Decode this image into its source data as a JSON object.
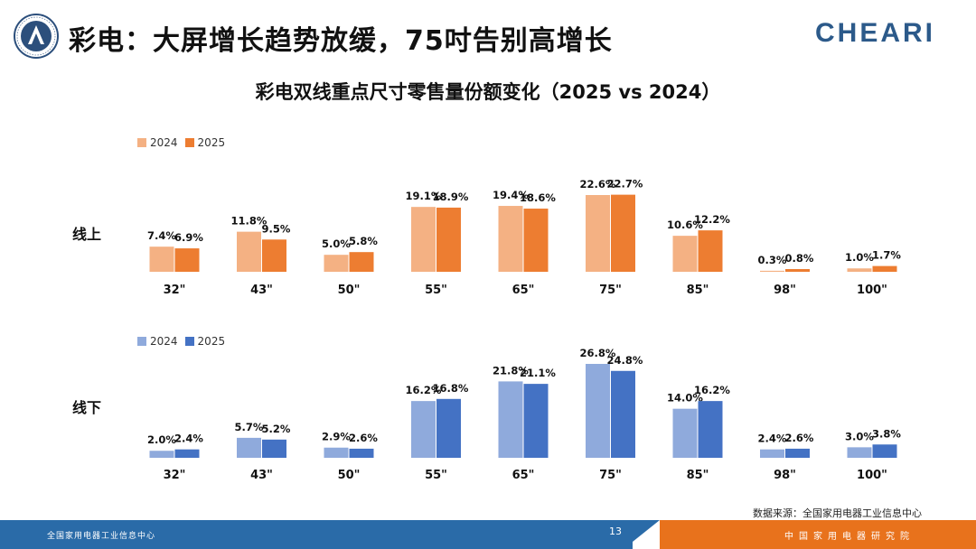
{
  "header": {
    "title": "彩电：大屏增长趋势放缓，75吋告别高增长",
    "brand": "CHEARI"
  },
  "chart_title": "彩电双线重点尺寸零售量份额变化（2025 vs 2024）",
  "colors": {
    "online_2024": "#f4b183",
    "online_2025": "#ed7d31",
    "offline_2024": "#8faadc",
    "offline_2025": "#4472c4",
    "footer_blue": "#2a6ba8",
    "footer_orange": "#e8721c"
  },
  "chart_data": [
    {
      "type": "bar",
      "row_label": "线上",
      "legend": [
        "2024",
        "2025"
      ],
      "categories": [
        "32\"",
        "43\"",
        "50\"",
        "55\"",
        "65\"",
        "75\"",
        "85\"",
        "98\"",
        "100\""
      ],
      "series": [
        {
          "name": "2024",
          "values": [
            7.4,
            11.8,
            5.0,
            19.1,
            19.4,
            22.6,
            10.6,
            0.3,
            1.0
          ],
          "labels": [
            "7.4%",
            "11.8%",
            "5.0%",
            "19.1%",
            "19.4%",
            "22.6%",
            "10.6%",
            "0.3%",
            "1.0%"
          ]
        },
        {
          "name": "2025",
          "values": [
            6.9,
            9.5,
            5.8,
            18.9,
            18.6,
            22.7,
            12.2,
            0.8,
            1.7
          ],
          "labels": [
            "6.9%",
            "9.5%",
            "5.8%",
            "18.9%",
            "18.6%",
            "22.7%",
            "12.2%",
            "0.8%",
            "1.7%"
          ]
        }
      ],
      "unit": "%"
    },
    {
      "type": "bar",
      "row_label": "线下",
      "legend": [
        "2024",
        "2025"
      ],
      "categories": [
        "32\"",
        "43\"",
        "50\"",
        "55\"",
        "65\"",
        "75\"",
        "85\"",
        "98\"",
        "100\""
      ],
      "series": [
        {
          "name": "2024",
          "values": [
            2.0,
            5.7,
            2.9,
            16.2,
            21.8,
            26.8,
            14.0,
            2.4,
            3.0
          ],
          "labels": [
            "2.0%",
            "5.7%",
            "2.9%",
            "16.2%",
            "21.8%",
            "26.8%",
            "14.0%",
            "2.4%",
            "3.0%"
          ]
        },
        {
          "name": "2025",
          "values": [
            2.4,
            5.2,
            2.6,
            16.8,
            21.1,
            24.8,
            16.2,
            2.6,
            3.8
          ],
          "labels": [
            "2.4%",
            "5.2%",
            "2.6%",
            "16.8%",
            "21.1%",
            "24.8%",
            "16.2%",
            "2.6%",
            "3.8%"
          ]
        }
      ],
      "unit": "%"
    }
  ],
  "source": "数据来源：全国家用电器工业信息中心",
  "footer": {
    "left_text": "全国家用电器工业信息中心",
    "page_number": "13",
    "right_text": "中国家用电器研究院"
  }
}
